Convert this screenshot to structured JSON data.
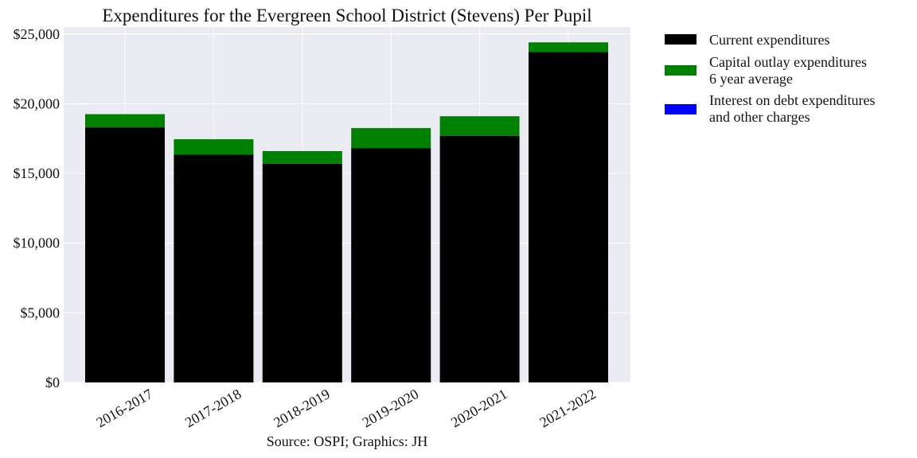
{
  "chart_data": {
    "type": "bar",
    "stacked": true,
    "title": "Expenditures for the Evergreen School District (Stevens) Per Pupil",
    "xlabel": "Source: OSPI; Graphics: JH",
    "ylabel": "",
    "categories": [
      "2016-2017",
      "2017-2018",
      "2018-2019",
      "2019-2020",
      "2020-2021",
      "2021-2022"
    ],
    "series": [
      {
        "name": "Current expenditures",
        "color": "#000000",
        "values": [
          18300,
          16350,
          15700,
          16800,
          17700,
          23700
        ]
      },
      {
        "name": "Capital outlay expenditures\n6 year average",
        "color": "#008000",
        "values": [
          950,
          1100,
          900,
          1450,
          1400,
          700
        ]
      },
      {
        "name": "Interest on debt expenditures\nand other charges",
        "color": "#0000ff",
        "values": [
          0,
          0,
          0,
          0,
          0,
          0
        ]
      }
    ],
    "ylim": [
      0,
      25500
    ],
    "yticks": [
      0,
      5000,
      10000,
      15000,
      20000,
      25000
    ],
    "ytick_labels": [
      "$0",
      "$5,000",
      "$10,000",
      "$15,000",
      "$20,000",
      "$25,000"
    ],
    "grid": true,
    "legend_position": "outside-right",
    "background_color": "#eaeaf2"
  }
}
